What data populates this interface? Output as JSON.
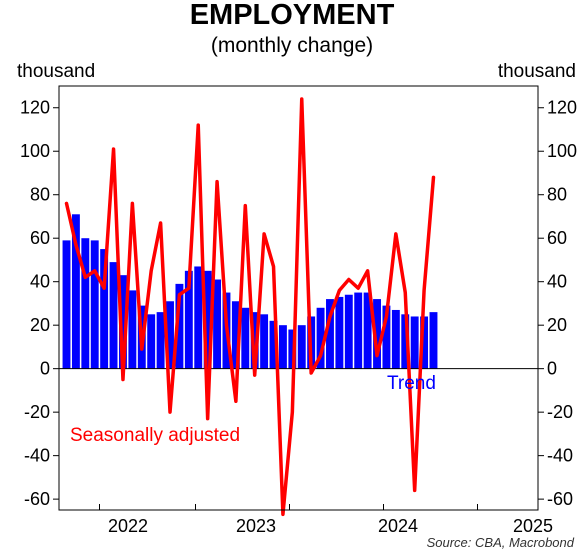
{
  "chart_data": {
    "type": "bar",
    "title": "EMPLOYMENT",
    "subtitle": "(monthly change)",
    "ylabel_left": "thousand",
    "ylabel_right": "thousand",
    "source": "Source: CBA, Macrobond",
    "ylim": [
      -65,
      130
    ],
    "yticks": [
      -60,
      -40,
      -20,
      0,
      20,
      40,
      60,
      80,
      100,
      120
    ],
    "ytick_labels": [
      "-60",
      "-40",
      "-20",
      "0",
      "20",
      "40",
      "60",
      "80",
      "100",
      "120"
    ],
    "xticks": [
      "2022",
      "2023",
      "2024",
      "2025"
    ],
    "grid": false,
    "series": [
      {
        "name": "Trend",
        "type": "bar",
        "color": "#0000ff",
        "values": [
          59,
          71,
          60,
          59,
          55,
          49,
          43,
          36,
          29,
          25,
          26,
          31,
          39,
          45,
          47,
          45,
          41,
          35,
          31,
          28,
          26,
          25,
          22,
          20,
          18,
          20,
          24,
          28,
          32,
          33,
          34,
          35,
          35,
          32,
          29,
          27,
          25,
          24,
          24,
          26
        ]
      },
      {
        "name": "Seasonally adjusted",
        "type": "line",
        "color": "#ff0000",
        "values": [
          76,
          57,
          42,
          45,
          37,
          101,
          -5,
          76,
          9,
          45,
          67,
          -20,
          34,
          37,
          112,
          -23,
          86,
          20,
          -15,
          75,
          -3,
          62,
          47,
          -67,
          -20,
          124,
          -2,
          6,
          24,
          36,
          41,
          37,
          45,
          6,
          24,
          62,
          35,
          -56,
          36,
          88
        ]
      }
    ],
    "legend_labels": {
      "trend": "Trend",
      "seasonal": "Seasonally adjusted"
    }
  }
}
